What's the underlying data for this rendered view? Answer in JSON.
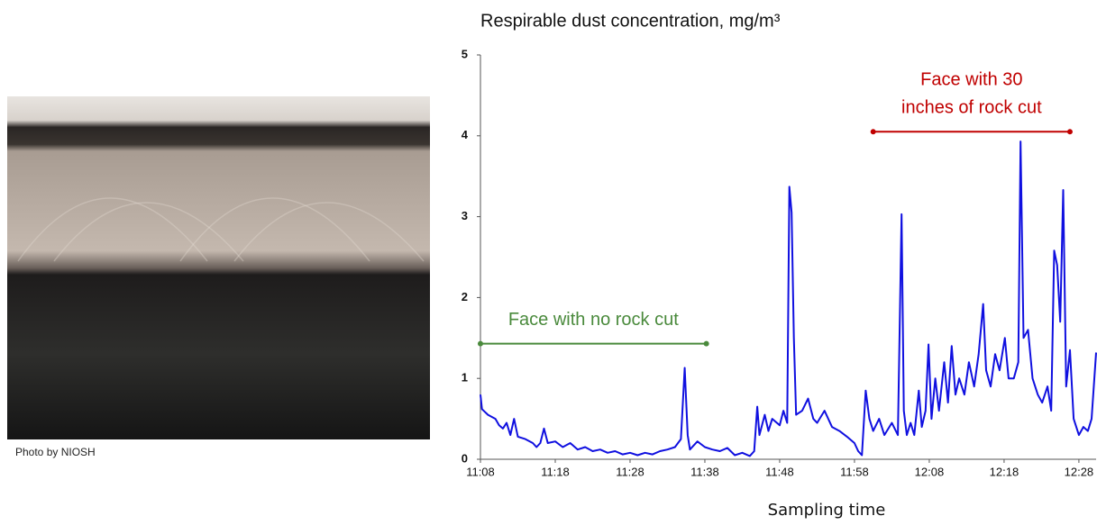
{
  "photo_caption": "Photo by NIOSH",
  "chart_data": {
    "type": "line",
    "title": "Respirable dust concentration, mg/m³",
    "x_label": "Sampling time",
    "color": "#1010e0",
    "x": [
      668,
      668.2,
      669,
      670,
      670.5,
      671,
      671.5,
      672,
      672.5,
      673,
      674,
      675,
      675.5,
      676,
      676.5,
      677,
      678,
      679,
      680,
      681,
      682,
      683,
      684,
      685,
      686,
      687,
      688,
      689,
      690,
      691,
      692,
      693,
      694,
      694.8,
      695.3,
      695.7,
      696,
      697,
      698,
      699,
      700,
      701,
      702,
      703,
      704,
      704.6,
      705,
      705.3,
      706,
      706.5,
      707,
      708,
      708.5,
      709,
      709.3,
      709.6,
      709.9,
      710.2,
      711,
      711.8,
      712.5,
      713,
      714,
      715,
      716,
      717,
      718,
      718.5,
      719,
      719.5,
      720,
      720.5,
      721.3,
      722,
      723,
      723.8,
      724.3,
      724.6,
      725,
      725.5,
      726,
      726.6,
      727,
      727.5,
      727.9,
      728.3,
      728.8,
      729.3,
      730,
      730.5,
      731,
      731.5,
      732,
      732.7,
      733.3,
      734,
      734.6,
      735.2,
      735.6,
      736.2,
      736.8,
      737.4,
      738.1,
      738.6,
      739.3,
      739.9,
      740.2,
      740.6,
      741.2,
      741.8,
      742.5,
      743.1,
      743.8,
      744.3,
      744.7,
      745.1,
      745.5,
      745.9,
      746.3,
      746.8,
      747.3,
      748,
      748.6,
      749.2,
      749.7,
      750.3
    ],
    "values": [
      0.8,
      0.62,
      0.55,
      0.5,
      0.42,
      0.38,
      0.45,
      0.3,
      0.5,
      0.28,
      0.25,
      0.2,
      0.15,
      0.2,
      0.38,
      0.2,
      0.22,
      0.15,
      0.2,
      0.12,
      0.15,
      0.1,
      0.12,
      0.08,
      0.1,
      0.06,
      0.08,
      0.05,
      0.08,
      0.06,
      0.1,
      0.12,
      0.15,
      0.25,
      1.13,
      0.3,
      0.12,
      0.22,
      0.15,
      0.12,
      0.1,
      0.14,
      0.05,
      0.08,
      0.04,
      0.1,
      0.65,
      0.3,
      0.55,
      0.35,
      0.5,
      0.42,
      0.6,
      0.45,
      3.37,
      3.05,
      1.5,
      0.55,
      0.6,
      0.75,
      0.5,
      0.45,
      0.6,
      0.4,
      0.35,
      0.28,
      0.2,
      0.1,
      0.05,
      0.85,
      0.5,
      0.35,
      0.5,
      0.3,
      0.45,
      0.3,
      3.03,
      0.6,
      0.3,
      0.45,
      0.3,
      0.85,
      0.4,
      0.6,
      1.42,
      0.5,
      1.0,
      0.6,
      1.2,
      0.7,
      1.4,
      0.8,
      1.0,
      0.8,
      1.2,
      0.9,
      1.3,
      1.92,
      1.1,
      0.9,
      1.3,
      1.1,
      1.5,
      1.0,
      1.0,
      1.2,
      3.93,
      1.5,
      1.6,
      1.0,
      0.8,
      0.7,
      0.9,
      0.6,
      2.58,
      2.4,
      1.7,
      3.33,
      0.9,
      1.35,
      0.5,
      0.3,
      0.4,
      0.35,
      0.5,
      1.32
    ],
    "xlim": [
      668,
      750.3
    ],
    "xticks": [
      {
        "value": 668,
        "label": "11:08"
      },
      {
        "value": 678,
        "label": "11:18"
      },
      {
        "value": 688,
        "label": "11:28"
      },
      {
        "value": 698,
        "label": "11:38"
      },
      {
        "value": 708,
        "label": "11:48"
      },
      {
        "value": 718,
        "label": "11:58"
      },
      {
        "value": 728,
        "label": "12:08"
      },
      {
        "value": 738,
        "label": "12:18"
      },
      {
        "value": 748,
        "label": "12:28"
      }
    ],
    "ylim": [
      0,
      5
    ],
    "yticks": [
      0,
      1,
      2,
      3,
      4,
      5
    ],
    "annotations": [
      {
        "lines": [
          "Face with no rock cut"
        ],
        "x_range": [
          668,
          698.2
        ],
        "y": 1.43,
        "color": "#4a8a3c"
      },
      {
        "lines": [
          "Face with 30",
          "inches of rock cut"
        ],
        "x_range": [
          720.5,
          746.8
        ],
        "y": 4.05,
        "color": "#c00000"
      }
    ]
  }
}
